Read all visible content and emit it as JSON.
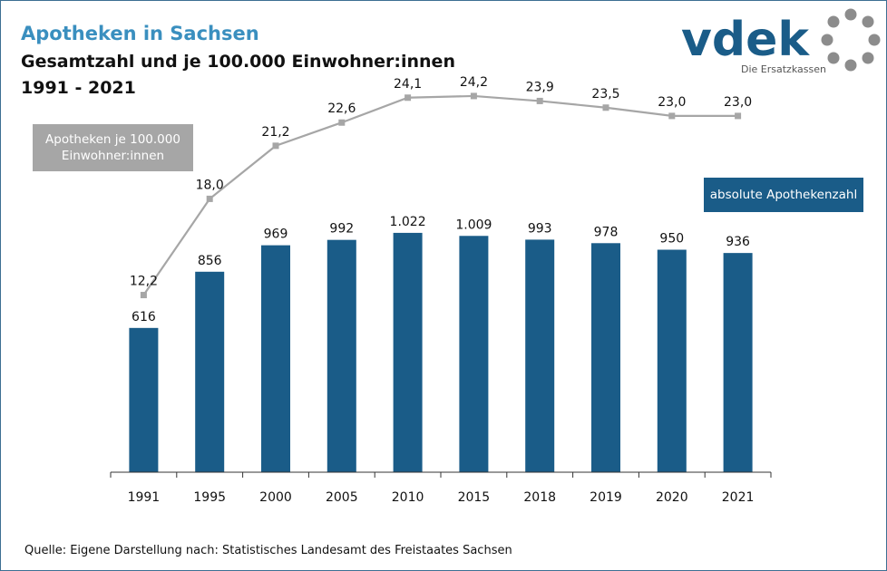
{
  "header": {
    "title": "Apotheken in Sachsen",
    "subtitle": "Gesamtzahl und je 100.000 Einwohner:innen",
    "period": "1991 - 2021"
  },
  "logo": {
    "wordmark": "vdek",
    "tagline": "Die Ersatzkassen",
    "colors": {
      "text": "#1a5c88",
      "dots": "#8c8c8c"
    }
  },
  "legend": {
    "line_label": "Apotheken je 100.000 Einwohner:innen",
    "bar_label": "absolute Apothekenzahl"
  },
  "source": "Quelle: Eigene Darstellung nach: Statistisches Landesamt des Freistaates Sachsen",
  "chart_data": {
    "type": "bar",
    "title": "Apotheken in Sachsen",
    "categories": [
      "1991",
      "1995",
      "2000",
      "2005",
      "2010",
      "2015",
      "2018",
      "2019",
      "2020",
      "2021"
    ],
    "series": [
      {
        "name": "absolute Apothekenzahl",
        "type": "bar",
        "color": "#1a5c88",
        "values": [
          616,
          856,
          969,
          992,
          1022,
          1009,
          993,
          978,
          950,
          936
        ],
        "labels": [
          "616",
          "856",
          "969",
          "992",
          "1.022",
          "1.009",
          "993",
          "978",
          "950",
          "936"
        ]
      },
      {
        "name": "Apotheken je 100.000 Einwohner:innen",
        "type": "line",
        "color": "#a6a6a6",
        "values": [
          12.2,
          18.0,
          21.2,
          22.6,
          24.1,
          24.2,
          23.9,
          23.5,
          23.0,
          23.0
        ],
        "labels": [
          "12,2",
          "18,0",
          "21,2",
          "22,6",
          "24,1",
          "24,2",
          "23,9",
          "23,5",
          "23,0",
          "23,0"
        ]
      }
    ],
    "bar_axis_range": [
      0,
      1800
    ],
    "line_axis_range": [
      0,
      30
    ],
    "grid": false
  }
}
